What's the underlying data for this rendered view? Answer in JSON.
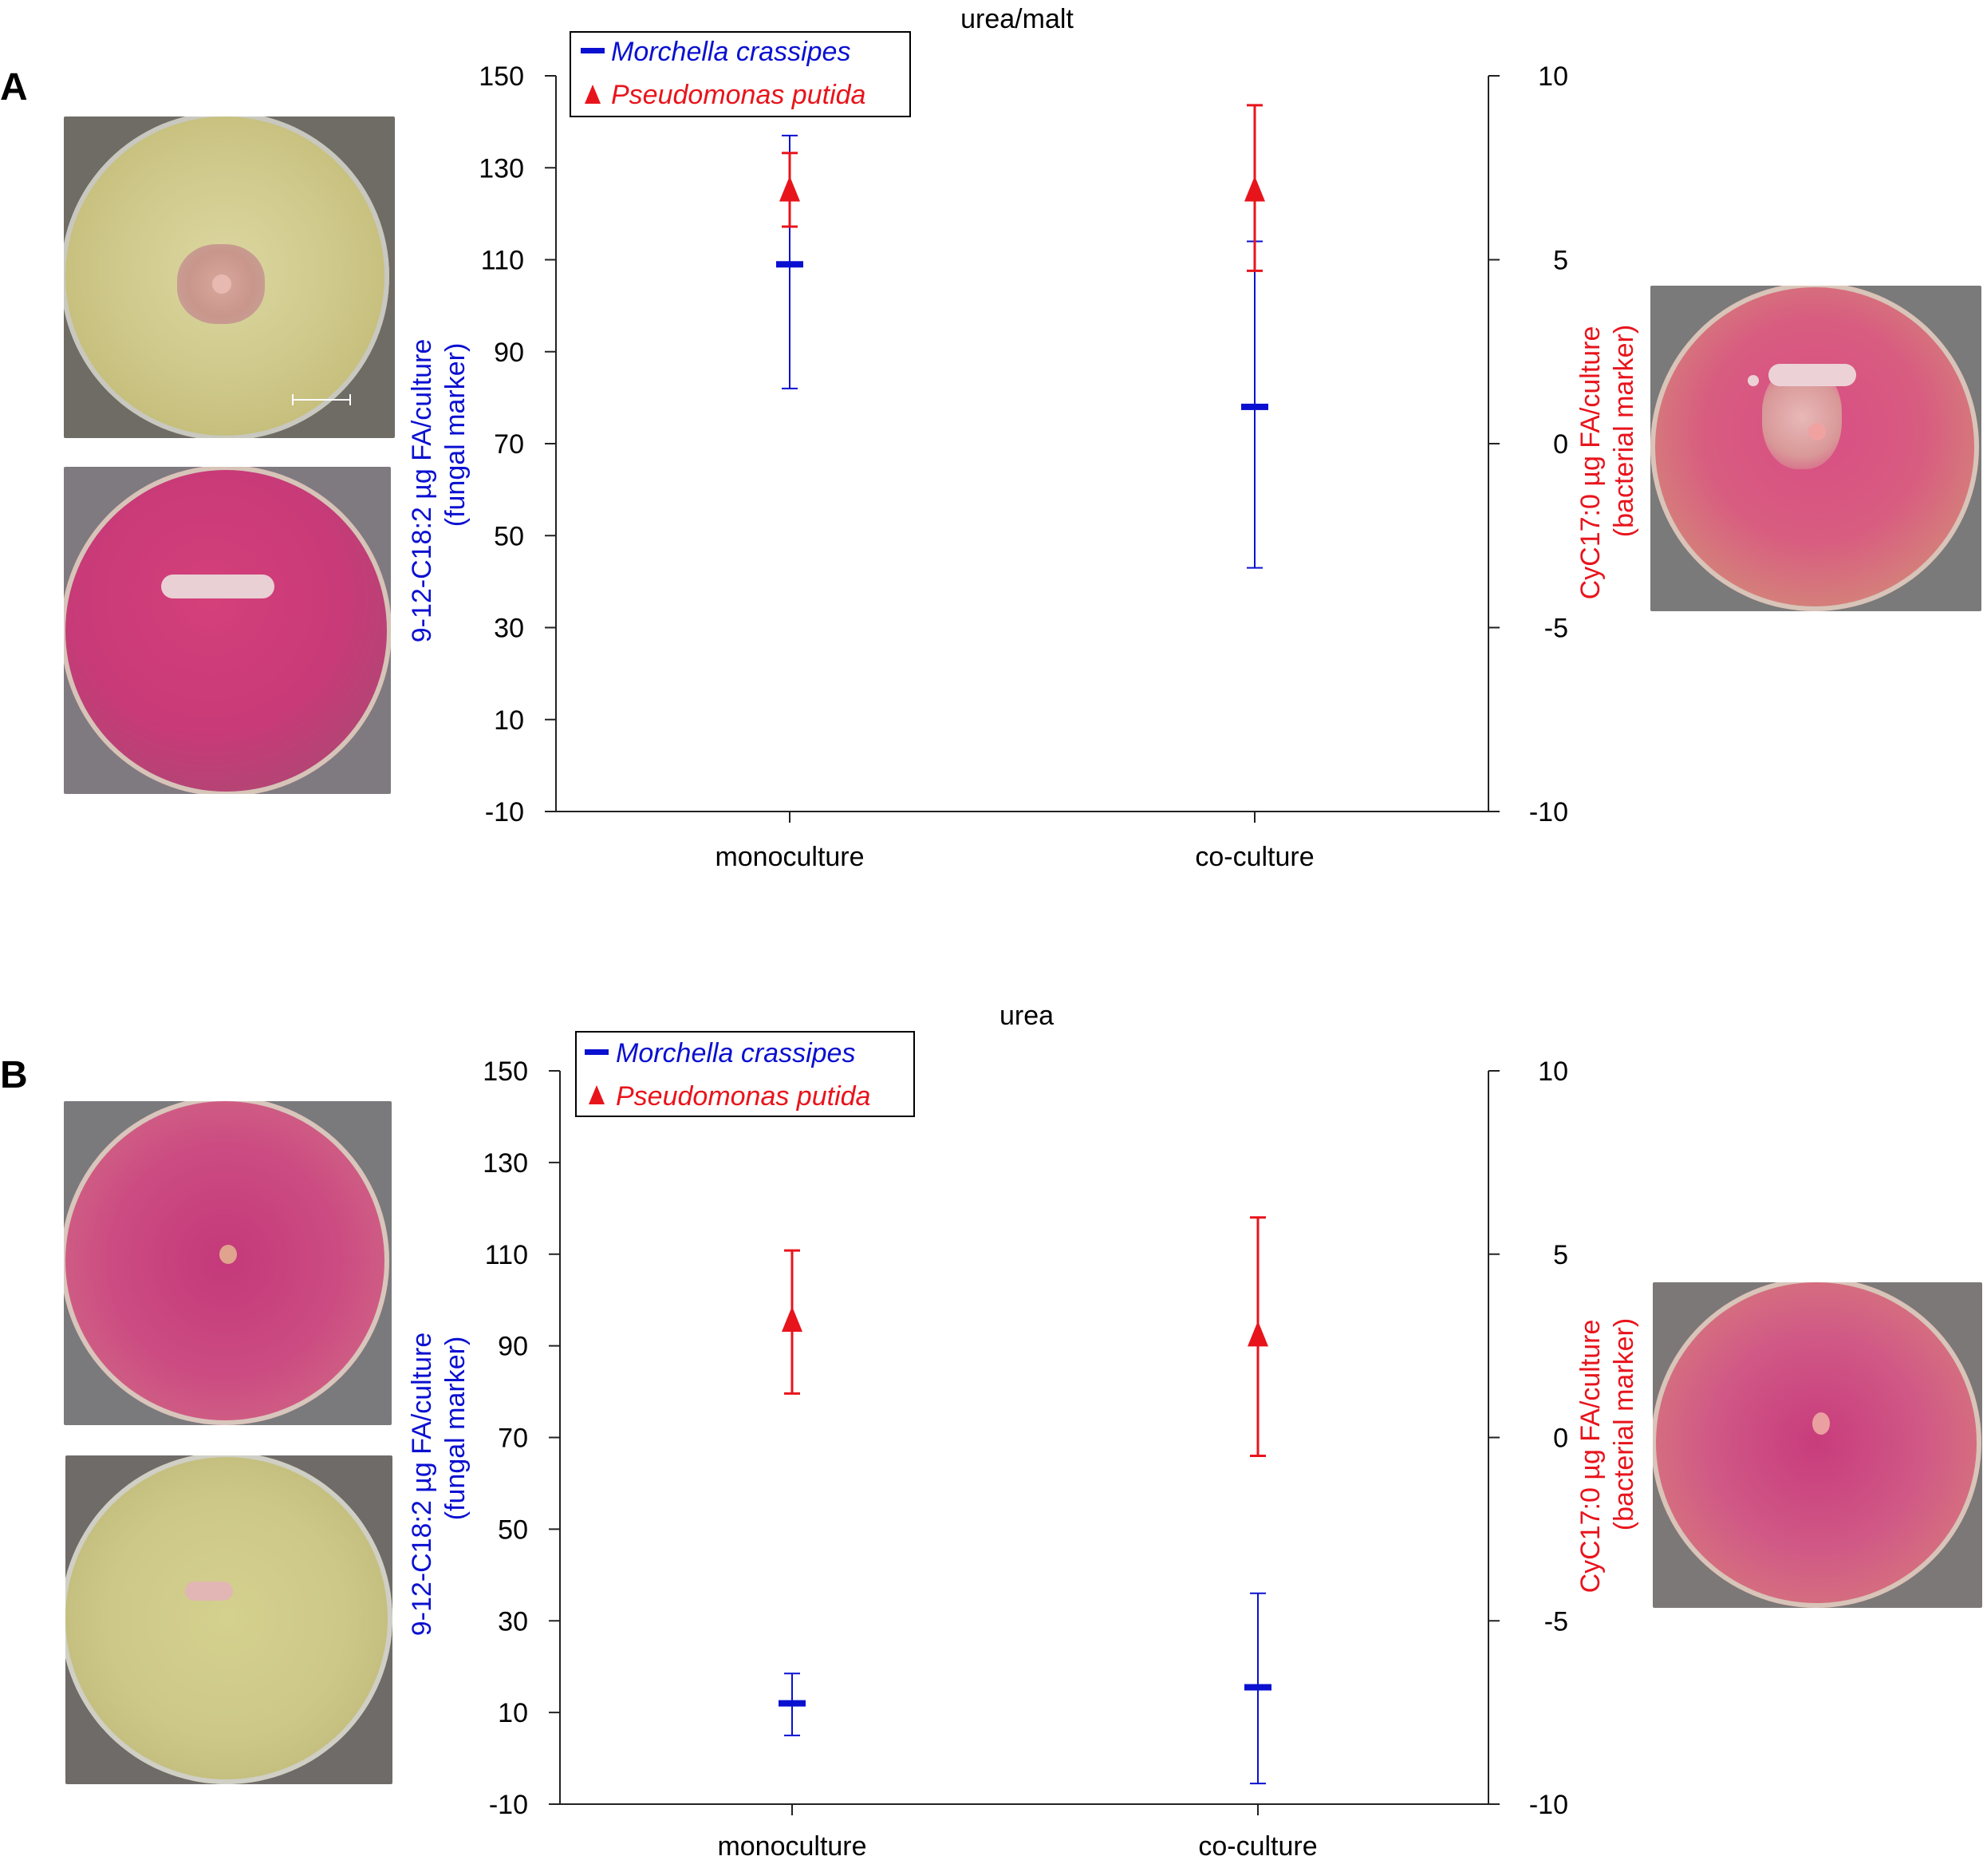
{
  "panels": [
    {
      "letter": "A"
    },
    {
      "letter": "B"
    }
  ],
  "colors": {
    "fungal": "#0a10d0",
    "bacterial": "#e8141c",
    "axis": "#222222"
  },
  "chart_data": [
    {
      "type": "scatter",
      "title": "urea/malt",
      "categories": [
        "monoculture",
        "co-culture"
      ],
      "ylabel_left": [
        "9-12-C18:2 µg FA/culture",
        "(fungal marker)"
      ],
      "ylabel_right": [
        "CyC17:0 µg FA/culture",
        "(bacterial marker)"
      ],
      "ylim_left": [
        -10,
        150
      ],
      "ylim_right": [
        -10,
        10
      ],
      "yticks_left": [
        "150",
        "130",
        "110",
        "90",
        "70",
        "50",
        "30",
        "10",
        "-10"
      ],
      "yticks_right": [
        "10",
        "5",
        "0",
        "-5",
        "-10"
      ],
      "legend": {
        "position": "top-left",
        "entries": [
          "Morchella crassipes",
          "Pseudomonas putida"
        ]
      },
      "series": [
        {
          "name": "Morchella crassipes",
          "axis": "left",
          "marker": "dash",
          "values": [
            109,
            78
          ],
          "err_low": [
            82,
            43
          ],
          "err_high": [
            137,
            114
          ]
        },
        {
          "name": "Pseudomonas putida",
          "axis": "right",
          "marker": "triangle",
          "values": [
            6.8,
            6.8
          ],
          "err_low": [
            5.9,
            4.7
          ],
          "err_high": [
            7.9,
            9.2
          ]
        }
      ]
    },
    {
      "type": "scatter",
      "title": "urea",
      "categories": [
        "monoculture",
        "co-culture"
      ],
      "ylabel_left": [
        "9-12-C18:2 µg FA/culture",
        "(fungal marker)"
      ],
      "ylabel_right": [
        "CyC17:0 µg FA/culture",
        "(bacterial marker)"
      ],
      "ylim_left": [
        -10,
        150
      ],
      "ylim_right": [
        -10,
        10
      ],
      "yticks_left": [
        "150",
        "130",
        "110",
        "90",
        "70",
        "50",
        "30",
        "10",
        "-10"
      ],
      "yticks_right": [
        "10",
        "5",
        "0",
        "-5",
        "-10"
      ],
      "legend": {
        "position": "top-left",
        "entries": [
          "Morchella crassipes",
          "Pseudomonas putida"
        ]
      },
      "series": [
        {
          "name": "Morchella crassipes",
          "axis": "left",
          "marker": "dash",
          "values": [
            12,
            15.5
          ],
          "err_low": [
            5,
            -5.5
          ],
          "err_high": [
            18.5,
            36
          ]
        },
        {
          "name": "Pseudomonas putida",
          "axis": "right",
          "marker": "triangle",
          "values": [
            3.1,
            2.7
          ],
          "err_low": [
            1.2,
            -0.5
          ],
          "err_high": [
            5.1,
            6.0
          ]
        }
      ]
    }
  ]
}
